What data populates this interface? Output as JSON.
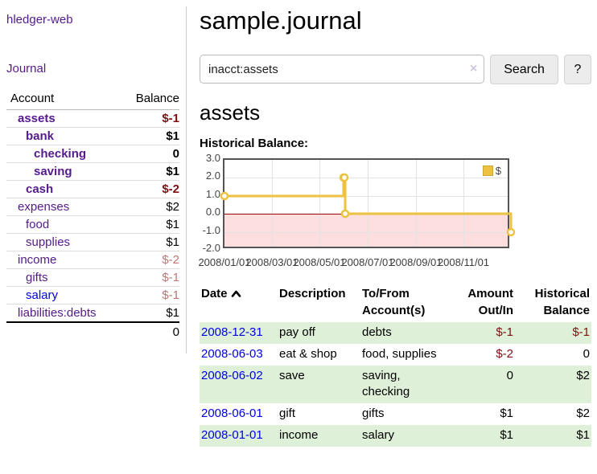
{
  "app": {
    "title": "hledger-web"
  },
  "sidebar": {
    "journal_link": "Journal",
    "account_header": "Account",
    "balance_header": "Balance",
    "accounts": [
      {
        "name": "assets",
        "balance": "$-1"
      },
      {
        "name": "bank",
        "balance": "$1"
      },
      {
        "name": "checking",
        "balance": "0"
      },
      {
        "name": "saving",
        "balance": "$1"
      },
      {
        "name": "cash",
        "balance": "$-2"
      },
      {
        "name": "expenses",
        "balance": "$2"
      },
      {
        "name": "food",
        "balance": "$1"
      },
      {
        "name": "supplies",
        "balance": "$1"
      },
      {
        "name": "income",
        "balance": "$-2"
      },
      {
        "name": "gifts",
        "balance": "$-1"
      },
      {
        "name": "salary",
        "balance": "$-1"
      },
      {
        "name": "liabilities:debts",
        "balance": "$1"
      }
    ],
    "total": "0"
  },
  "header": {
    "title": "sample.journal"
  },
  "search": {
    "value": "inacct:assets",
    "clear_icon": "×",
    "button_label": "Search",
    "help_label": "?"
  },
  "account_page": {
    "heading": "assets",
    "chart_label": "Historical Balance:"
  },
  "chart_data": {
    "type": "line",
    "title": "Historical Balance:",
    "series": [
      {
        "name": "$",
        "color": "#edc240",
        "step": true,
        "points": [
          [
            "2008-01-01",
            1
          ],
          [
            "2008-06-01",
            2
          ],
          [
            "2008-06-02",
            2
          ],
          [
            "2008-06-03",
            0
          ],
          [
            "2008-12-31",
            -1
          ]
        ]
      }
    ],
    "xrange": [
      "2008-01-01",
      "2008-12-31"
    ],
    "ylim": [
      -2,
      3
    ],
    "yticks": [
      3,
      2,
      1,
      0,
      -1,
      -2
    ],
    "ytick_labels": [
      "3.0",
      "2.0",
      "1.0",
      "0.0",
      "-1.0",
      "-2.0"
    ],
    "xticks": [
      "2008-01-01",
      "2008-03-01",
      "2008-05-01",
      "2008-07-01",
      "2008-09-01",
      "2008-11-01"
    ],
    "xtick_labels": [
      "2008/01/01",
      "2008/03/01",
      "2008/05/01",
      "2008/07/01",
      "2008/09/01",
      "2008/11/01"
    ],
    "legend": {
      "label": "$",
      "position": "top-right"
    },
    "grid": true,
    "negative_region_color": "#fcdede",
    "zero_line_color": "#a00000"
  },
  "register": {
    "headers": {
      "date": "Date",
      "description": "Description",
      "accounts": "To/From Account(s)",
      "amount": "Amount Out/In",
      "balance": "Historical Balance"
    },
    "rows": [
      {
        "date": "2008-12-31",
        "description": "pay off",
        "accounts": "debts",
        "amount": "$-1",
        "balance": "$-1"
      },
      {
        "date": "2008-06-03",
        "description": "eat & shop",
        "accounts": "food, supplies",
        "amount": "$-2",
        "balance": "0"
      },
      {
        "date": "2008-06-02",
        "description": "save",
        "accounts": "saving, checking",
        "amount": "0",
        "balance": "$2"
      },
      {
        "date": "2008-06-01",
        "description": "gift",
        "accounts": "gifts",
        "amount": "$1",
        "balance": "$2"
      },
      {
        "date": "2008-01-01",
        "description": "income",
        "accounts": "salary",
        "amount": "$1",
        "balance": "$1"
      }
    ]
  },
  "colors": {
    "link_purple": "#551A8B",
    "link_blue": "#0000EE",
    "negative_strong": "#7c1013",
    "negative_faded": "#b97777",
    "row_green": "#dff0d8",
    "chart_gold": "#edc240",
    "chart_negative_bg": "#fcdede",
    "chart_zero_line": "#a00000"
  }
}
